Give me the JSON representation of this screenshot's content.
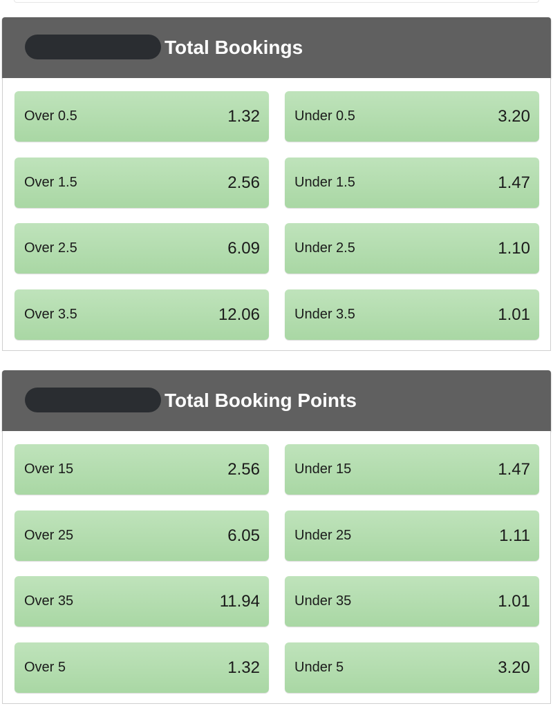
{
  "sections": [
    {
      "title": "Total Bookings",
      "rows": [
        [
          {
            "label": "Over 0.5",
            "odds": "1.32"
          },
          {
            "label": "Under 0.5",
            "odds": "3.20"
          }
        ],
        [
          {
            "label": "Over 1.5",
            "odds": "2.56"
          },
          {
            "label": "Under 1.5",
            "odds": "1.47"
          }
        ],
        [
          {
            "label": "Over 2.5",
            "odds": "6.09"
          },
          {
            "label": "Under 2.5",
            "odds": "1.10"
          }
        ],
        [
          {
            "label": "Over 3.5",
            "odds": "12.06"
          },
          {
            "label": "Under 3.5",
            "odds": "1.01"
          }
        ]
      ]
    },
    {
      "title": "Total Booking Points",
      "rows": [
        [
          {
            "label": "Over 15",
            "odds": "2.56"
          },
          {
            "label": "Under 15",
            "odds": "1.47"
          }
        ],
        [
          {
            "label": "Over 25",
            "odds": "6.05"
          },
          {
            "label": "Under 25",
            "odds": "1.11"
          }
        ],
        [
          {
            "label": "Over 35",
            "odds": "11.94"
          },
          {
            "label": "Under 35",
            "odds": "1.01"
          }
        ],
        [
          {
            "label": "Over 5",
            "odds": "1.32"
          },
          {
            "label": "Under 5",
            "odds": "3.20"
          }
        ]
      ]
    }
  ],
  "colors": {
    "header": "#606060",
    "button": "#b5ddb0",
    "redaction": "#2a2d31"
  }
}
